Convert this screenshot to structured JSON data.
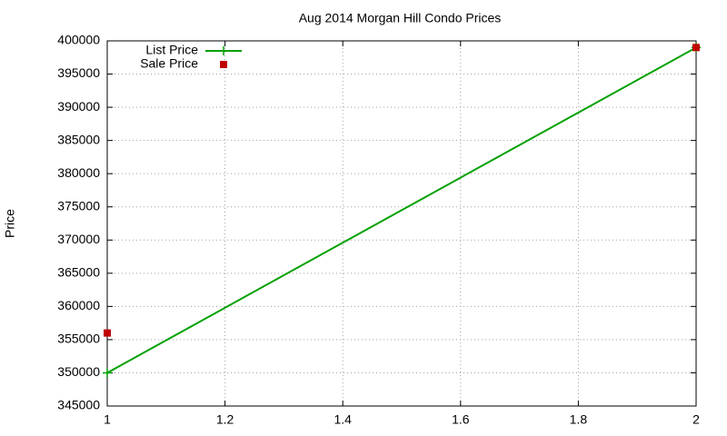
{
  "chart_data": {
    "type": "line",
    "title": "Aug 2014 Morgan Hill Condo Prices",
    "y_label": "Price",
    "x": [
      1,
      2
    ],
    "series": [
      {
        "name": "List Price",
        "color": "#00a000",
        "style": "linespoints",
        "values": [
          350000,
          399000
        ]
      },
      {
        "name": "Sale Price",
        "color": "#c00000",
        "style": "points",
        "values": [
          356000,
          399000
        ]
      }
    ],
    "xlim": [
      1,
      2
    ],
    "xticks": [
      1,
      1.2,
      1.4,
      1.6,
      1.8,
      2
    ],
    "ylim": [
      345000,
      400000
    ],
    "yticks": [
      345000,
      350000,
      355000,
      360000,
      365000,
      370000,
      375000,
      380000,
      385000,
      390000,
      395000,
      400000
    ],
    "grid": true,
    "legend": "top-left"
  }
}
